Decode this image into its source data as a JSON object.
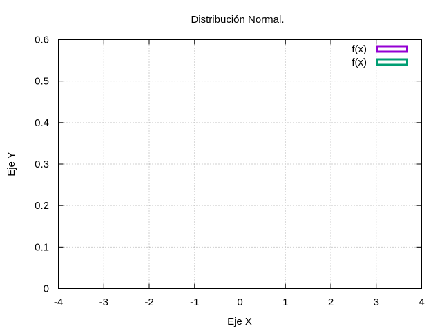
{
  "chart_data": {
    "type": "area",
    "title": "Distribución Normal.",
    "xlabel": "Eje X",
    "ylabel": "Eje Y",
    "xlim": [
      -4,
      4
    ],
    "ylim": [
      0,
      0.6
    ],
    "x_ticks": [
      -4,
      -3,
      -2,
      -1,
      0,
      1,
      2,
      3,
      4
    ],
    "y_ticks": [
      0,
      0.1,
      0.2,
      0.3,
      0.4,
      0.5,
      0.6
    ],
    "grid": true,
    "grid_style": "dotted",
    "legend_position": "top-right",
    "series": [
      {
        "name": "f(x)",
        "color": "#9400d3",
        "values": []
      },
      {
        "name": "f(x)",
        "color": "#009e73",
        "values": []
      }
    ]
  }
}
